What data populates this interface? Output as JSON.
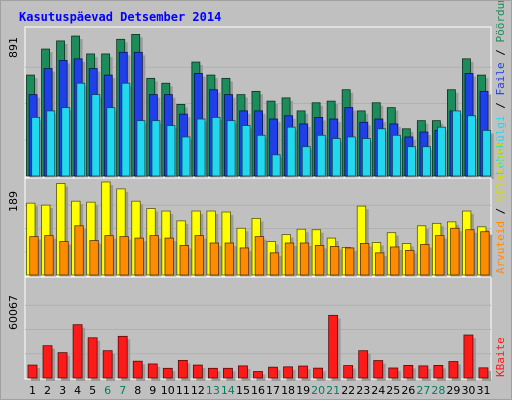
{
  "chart_data": {
    "type": "bar",
    "title": "Kasutuspäevad Detsember 2014",
    "categories": [
      "1",
      "2",
      "3",
      "4",
      "5",
      "6",
      "7",
      "8",
      "9",
      "10",
      "11",
      "12",
      "13",
      "14",
      "15",
      "16",
      "17",
      "18",
      "19",
      "20",
      "21",
      "22",
      "23",
      "24",
      "25",
      "26",
      "27",
      "28",
      "29",
      "30",
      "31"
    ],
    "weekend_days": [
      "6",
      "7",
      "13",
      "14",
      "20",
      "21",
      "27",
      "28"
    ],
    "panels": [
      {
        "id": "traffic",
        "ymax_label": "891",
        "ymax": 891,
        "side_labels": [
          "Pöördumisi",
          "Faile",
          "Lehekülgi"
        ],
        "series": [
          {
            "name": "Pöördumisi",
            "color": "#1c8c5a",
            "values": [
              620,
              780,
              830,
              860,
              750,
              750,
              840,
              870,
              600,
              570,
              440,
              700,
              620,
              600,
              500,
              520,
              460,
              480,
              400,
              450,
              460,
              530,
              400,
              450,
              420,
              290,
              340,
              340,
              530,
              720,
              620
            ]
          },
          {
            "name": "Faile",
            "color": "#1f3fe8",
            "values": [
              500,
              660,
              710,
              720,
              660,
              620,
              760,
              760,
              500,
              500,
              380,
              630,
              530,
              500,
              400,
              400,
              350,
              370,
              320,
              360,
              350,
              420,
              330,
              350,
              320,
              240,
              270,
              280,
              400,
              630,
              520
            ]
          },
          {
            "name": "Lehekülgi",
            "color": "#22d8ee",
            "values": [
              360,
              400,
              420,
              570,
              500,
              420,
              570,
              340,
              340,
              310,
              240,
              350,
              360,
              340,
              310,
              250,
              130,
              300,
              180,
              250,
              230,
              240,
              230,
              290,
              250,
              180,
              180,
              300,
              400,
              370,
              280
            ]
          }
        ]
      },
      {
        "id": "sessions",
        "ymax_label": "189",
        "ymax": 189,
        "side_labels": [
          "Külastusi",
          "Arvuteid"
        ],
        "series": [
          {
            "name": "Külastusi",
            "color": "#ffff00",
            "values": [
              146,
              142,
              186,
              150,
              148,
              190,
              175,
              150,
              135,
              130,
              110,
              130,
              130,
              128,
              95,
              115,
              68,
              82,
              93,
              92,
              75,
              56,
              140,
              66,
              86,
              64,
              100,
              105,
              108,
              130,
              98
            ]
          },
          {
            "name": "Arvuteid",
            "color": "#ff8c00",
            "values": [
              78,
              80,
              68,
              100,
              70,
              80,
              78,
              75,
              80,
              75,
              60,
              80,
              65,
              65,
              55,
              78,
              45,
              65,
              65,
              60,
              58,
              55,
              64,
              45,
              57,
              50,
              62,
              80,
              95,
              92,
              88
            ]
          }
        ]
      },
      {
        "id": "kbytes",
        "ymax_label": "60067",
        "ymax": 60067,
        "side_labels": [
          "KBaite"
        ],
        "series": [
          {
            "name": "KBaite",
            "color": "#ff1a1a",
            "values": [
              8000,
              20000,
              15700,
              33000,
              24900,
              16900,
              25800,
              10400,
              8700,
              6000,
              10900,
              8000,
              6000,
              6000,
              7500,
              4000,
              6700,
              6900,
              7400,
              6100,
              38800,
              7700,
              16900,
              10800,
              6200,
              7800,
              7500,
              7800,
              10200,
              26600,
              6300
            ]
          }
        ]
      }
    ],
    "grid": true,
    "legend": "right-side vertical"
  }
}
